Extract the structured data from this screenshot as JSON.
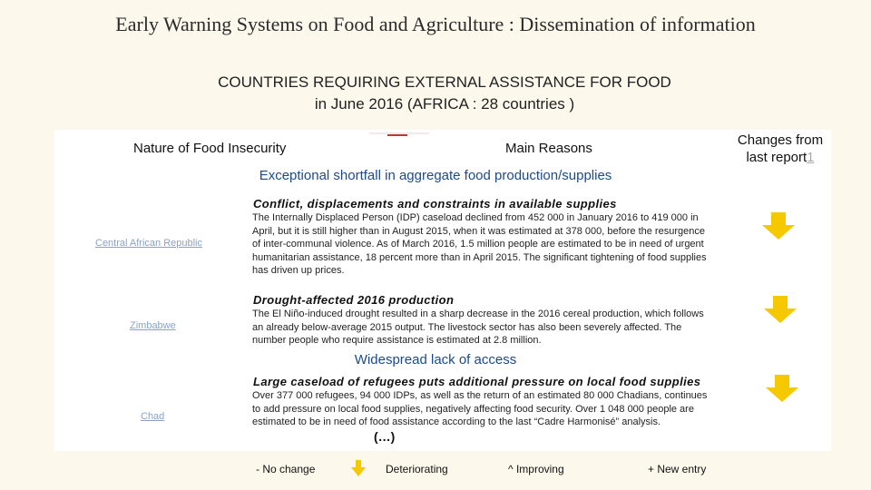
{
  "title": "Early Warning Systems on Food and Agriculture : Dissemination of information",
  "heading": {
    "line1": "COUNTRIES REQUIRING EXTERNAL ASSISTANCE FOR FOOD",
    "line2": "in June 2016 (AFRICA : 28 countries )"
  },
  "columns": {
    "nature": "Nature of Food Insecurity",
    "reasons": "Main Reasons",
    "changes_line1": "Changes from",
    "changes_line2": "last report",
    "changes_marker": "1"
  },
  "sections": [
    {
      "heading": "Exceptional shortfall in aggregate food production/supplies",
      "entries": [
        {
          "country": "Central African Republic",
          "reason": "Conflict, displacements and constraints in available supplies",
          "text": "The Internally Displaced Person (IDP) caseload declined from 452 000 in January 2016 to 419 000 in April, but it is still higher than in August 2015, when it was estimated at 378 000, before the resurgence of inter-communal violence. As of March 2016, 1.5 million people are estimated to be in need of urgent humanitarian assistance, 18 percent more than in April 2015. The significant tightening of food supplies has driven up prices.",
          "change": "deteriorating"
        },
        {
          "country": "Zimbabwe",
          "reason": "Drought-affected 2016 production",
          "text": "The El Niño-induced drought resulted in a sharp decrease in the 2016 cereal production, which follows an already below-average 2015 output. The livestock sector has also been severely affected. The number people who require assistance is estimated at 2.8 million.",
          "change": "deteriorating"
        }
      ]
    },
    {
      "heading": "Widespread lack of access",
      "entries": [
        {
          "country": "Chad",
          "reason": "Large caseload of refugees puts additional pressure on local food supplies",
          "text": "Over 377 000 refugees, 94 000 IDPs, as well as the return of an estimated 80 000 Chadians, continues to add pressure on local food supplies, negatively affecting food security. Over 1 048 000 people are estimated to be in need of food assistance according to the last “Cadre Harmonisé” analysis.",
          "change": "deteriorating"
        }
      ]
    }
  ],
  "ellipsis": "(…)",
  "legend": {
    "no_change": "-  No change",
    "deteriorating": "Deteriorating",
    "improving": "^  Improving",
    "new_entry": "+ New entry"
  },
  "colors": {
    "background": "#fcf8ec",
    "panel": "#ffffff",
    "arrow": "#f5c800",
    "section_heading": "#1b4a8c",
    "country_link": "#8aa3c4"
  }
}
